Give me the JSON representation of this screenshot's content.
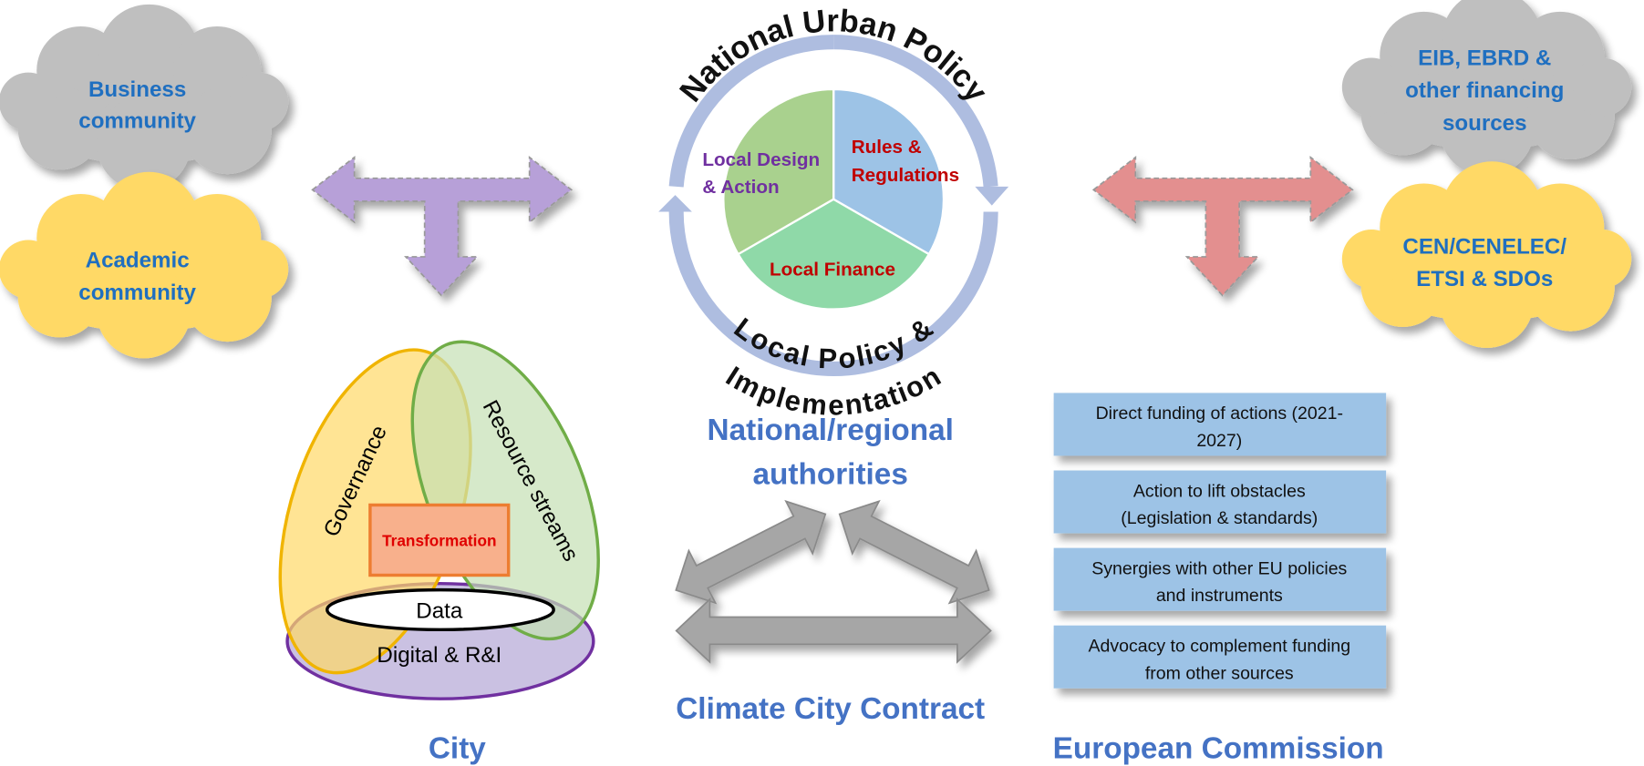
{
  "clouds": [
    {
      "lines": [
        "Business",
        "community"
      ]
    },
    {
      "lines": [
        "Academic",
        "community"
      ]
    },
    {
      "lines": [
        "EIB, EBRD &",
        "other financing",
        "sources"
      ]
    },
    {
      "lines": [
        "CEN/CENELEC/",
        "ETSI & SDOs"
      ]
    }
  ],
  "policy_circle": {
    "outer_label": "National Urban Policy",
    "inner_label": [
      "Local Policy &",
      "Implementation"
    ],
    "segments": [
      {
        "lines": [
          "Local Design",
          "& Action"
        ]
      },
      {
        "lines": [
          "Rules &",
          "Regulations"
        ]
      },
      {
        "lines": [
          "Local Finance"
        ]
      }
    ]
  },
  "national_label": [
    "National/regional",
    "authorities"
  ],
  "city": {
    "governance": "Governance",
    "resources": "Resource streams",
    "transformation": "Transformation",
    "data": "Data",
    "digital": "Digital & R&I",
    "label": "City"
  },
  "contract_label": "Climate City Contract",
  "commission": {
    "boxes": [
      {
        "lines": [
          "Direct funding of actions (2021-",
          "2027)"
        ]
      },
      {
        "lines": [
          "Action to lift obstacles",
          "(Legislation & standards)"
        ]
      },
      {
        "lines": [
          "Synergies with other EU policies",
          "and instruments"
        ]
      },
      {
        "lines": [
          "Advocacy to complement funding",
          "from other sources"
        ]
      }
    ],
    "label": "European Commission"
  }
}
